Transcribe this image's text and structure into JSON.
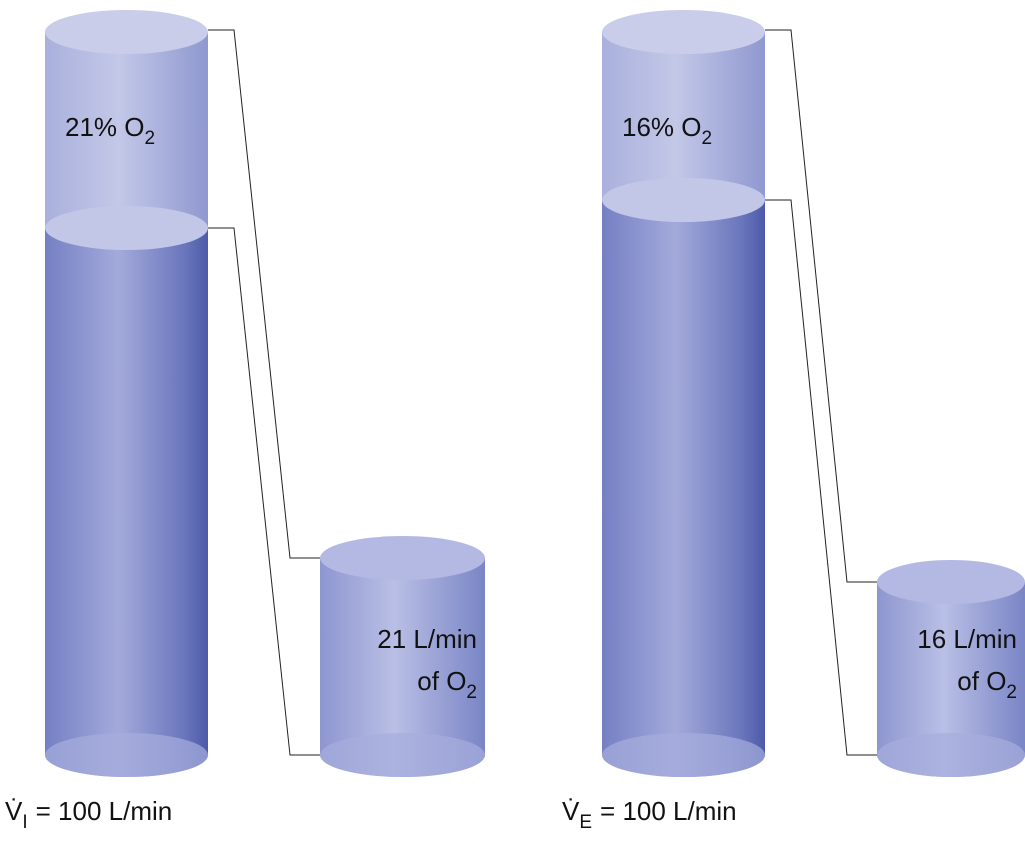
{
  "panels": [
    {
      "cylinder_label": {
        "text": "21% O",
        "sub": "2"
      },
      "small_label": {
        "line1": "21 L/min",
        "line2": {
          "text": "of O",
          "sub": "2"
        }
      },
      "flow_label": {
        "symbol": "V̇",
        "sub": "I",
        "text": "= 100 L/min"
      }
    },
    {
      "cylinder_label": {
        "text": "16% O",
        "sub": "2"
      },
      "small_label": {
        "line1": "16 L/min",
        "line2": {
          "text": "of O",
          "sub": "2"
        }
      },
      "flow_label": {
        "symbol": "V̇",
        "sub": "E",
        "text": "= 100 L/min"
      }
    }
  ]
}
